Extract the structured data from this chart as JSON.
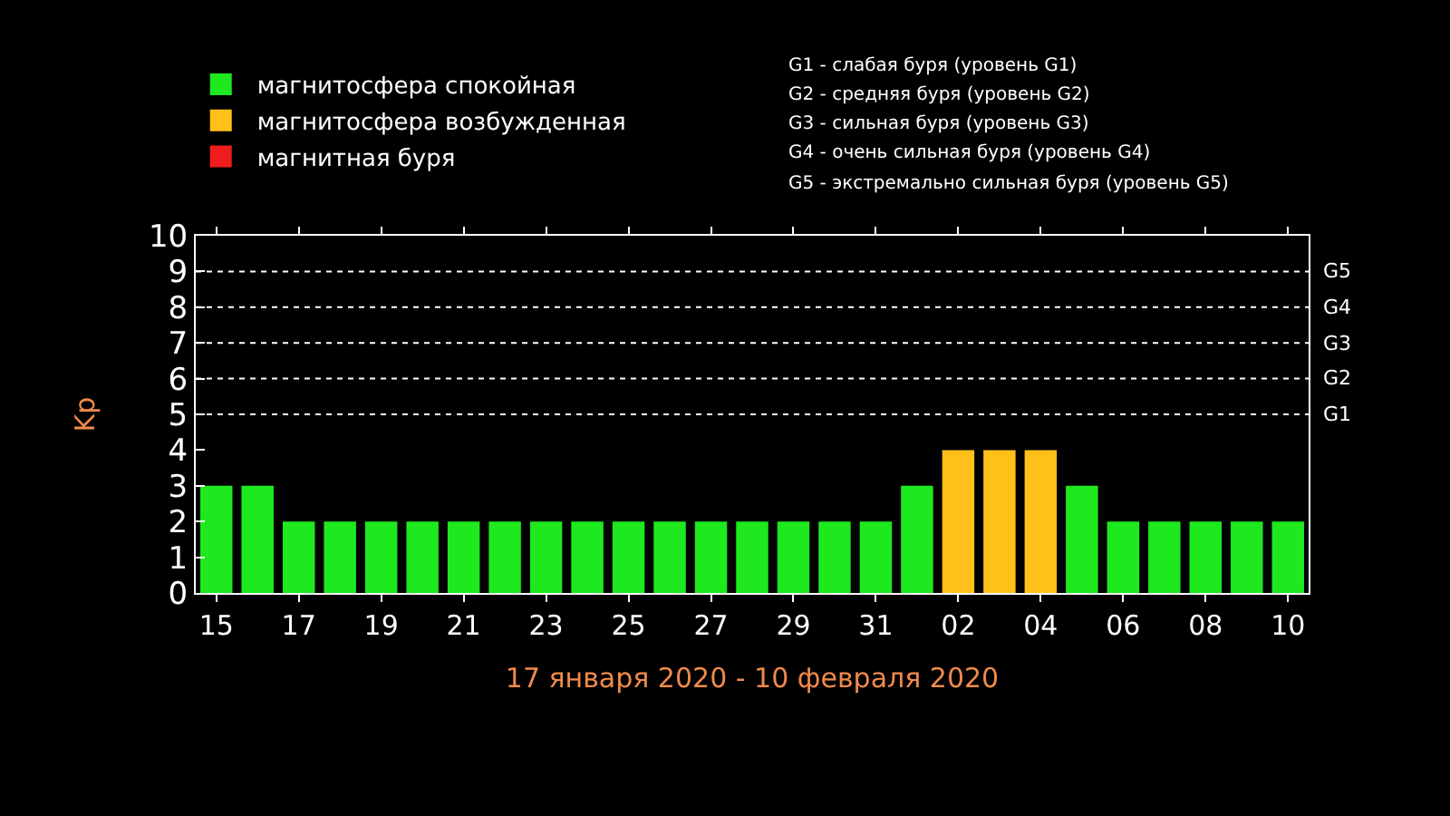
{
  "chart_data": {
    "type": "bar",
    "stacked": true,
    "categories": [
      "15",
      null,
      "17",
      null,
      "19",
      null,
      "21",
      null,
      "23",
      null,
      "25",
      null,
      "27",
      null,
      "29",
      null,
      "31",
      null,
      "02",
      null,
      "04",
      null,
      "06",
      null,
      "08",
      null,
      "10"
    ],
    "series": [
      {
        "name": "магнитосфера спокойная",
        "color": "#1ee81e",
        "values": [
          3,
          3,
          2,
          2,
          2,
          2,
          2,
          2,
          2,
          2,
          2,
          2,
          2,
          2,
          2,
          2,
          2,
          3,
          null,
          null,
          null,
          3,
          2,
          2,
          2,
          2,
          2
        ]
      },
      {
        "name": "магнитосфера возбужденная",
        "color": "#ffc01a",
        "values": [
          null,
          null,
          null,
          null,
          null,
          null,
          null,
          null,
          null,
          null,
          null,
          null,
          null,
          null,
          null,
          null,
          null,
          null,
          4,
          4,
          4,
          null,
          null,
          null,
          null,
          null,
          null
        ]
      },
      {
        "name": "магнитная буря",
        "color": "#ee1c1c",
        "values": [
          null,
          null,
          null,
          null,
          null,
          null,
          null,
          null,
          null,
          null,
          null,
          null,
          null,
          null,
          null,
          null,
          null,
          null,
          null,
          null,
          null,
          null,
          null,
          null,
          null,
          null,
          null
        ]
      }
    ],
    "ylabel": "Kp",
    "xlabel": "17 января 2020 - 10 февраля 2020",
    "ylim": [
      0,
      10
    ],
    "yticks": [
      0,
      1,
      2,
      3,
      4,
      5,
      6,
      7,
      8,
      9,
      10
    ],
    "ref_lines": [
      {
        "axis": "y",
        "value": 5,
        "label": "G1",
        "color": "#ffffff",
        "line_style": "dotted"
      },
      {
        "axis": "y",
        "value": 6,
        "label": "G2",
        "color": "#ffffff",
        "line_style": "dotted"
      },
      {
        "axis": "y",
        "value": 7,
        "label": "G3",
        "color": "#ffffff",
        "line_style": "dotted"
      },
      {
        "axis": "y",
        "value": 8,
        "label": "G4",
        "color": "#ffffff",
        "line_style": "dotted"
      },
      {
        "axis": "y",
        "value": 9,
        "label": "G5",
        "color": "#ffffff",
        "line_style": "dotted"
      }
    ],
    "annotations": [
      "G1 - слабая буря (уровень G1)",
      "G2 - средняя буря (уровень G2)",
      "G3 - сильная буря (уровень G3)",
      "G4 - очень сильная буря (уровень G4)",
      "G5 - экстремально сильная буря (уровень G5)"
    ],
    "legend": "top left",
    "grid": false
  }
}
